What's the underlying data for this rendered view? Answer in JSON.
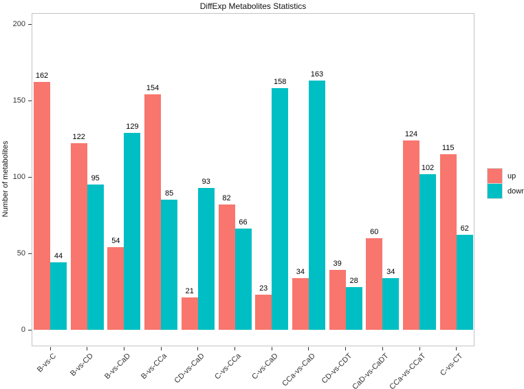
{
  "title": "DiffExp Metabolites Statistics",
  "chart_data": {
    "type": "bar",
    "title": "DiffExp Metabolites Statistics",
    "xlabel": "",
    "ylabel": "Number of metabolites",
    "categories": [
      "B-vs-C",
      "B-vs-CD",
      "B-vs-CaD",
      "B-vs-CCa",
      "CD-vs-CaD",
      "C-vs-CCa",
      "C-vs-CaD",
      "CCa-vs-CaD",
      "CD-vs-CDT",
      "CaD-vs-CaDT",
      "CCa-vs-CCaT",
      "C-vs-CT"
    ],
    "series": [
      {
        "name": "up",
        "color": "#F8766D",
        "values": [
          162,
          122,
          54,
          154,
          21,
          82,
          23,
          34,
          39,
          60,
          124,
          115
        ]
      },
      {
        "name": "down",
        "color": "#00BFC4",
        "values": [
          44,
          95,
          129,
          85,
          93,
          66,
          158,
          163,
          28,
          34,
          102,
          62
        ]
      }
    ],
    "yticks": [
      0,
      50,
      100,
      150,
      200
    ],
    "ylim": [
      0,
      200
    ],
    "bar_value_labels": true,
    "grid": false,
    "legend": {
      "position": "right",
      "entries": [
        "up",
        "down"
      ]
    }
  },
  "style": {
    "up_color": "#F8766D",
    "down_color": "#00BFC4",
    "panel_border": "#c3c3c3",
    "tick_color": "#333333",
    "legend_key_border": "#d6d6d6"
  }
}
